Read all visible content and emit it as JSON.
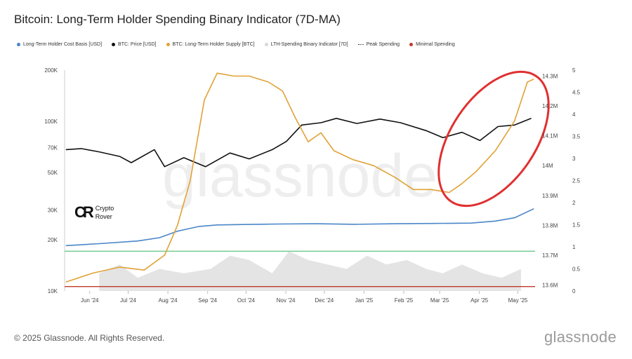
{
  "title": "Bitcoin: Long-Term Holder Spending Binary Indicator (7D-MA)",
  "legend": [
    {
      "label": "Long-Term Holder Cost Basis [USD]",
      "color": "#4a86c8",
      "style": "dot"
    },
    {
      "label": "BTC: Price [USD]",
      "color": "#111111",
      "style": "dot"
    },
    {
      "label": "BTC: Long-Term Holder Supply [BTC]",
      "color": "#e0a236",
      "style": "dot"
    },
    {
      "label": "LTH-Spending Binary Indicator [7D]",
      "color": "#d8d8d8",
      "style": "dot"
    },
    {
      "label": "Peak Spending",
      "color": "#333333",
      "style": "dash"
    },
    {
      "label": "Minimal Spending",
      "color": "#c0392b",
      "style": "dot"
    }
  ],
  "watermark": "glassnode",
  "logo": {
    "line1": "Crypto",
    "line2": "Rover"
  },
  "footer": "© 2025 Glassnode. All Rights Reserved.",
  "brand": "glassnode",
  "colors": {
    "price": "#111111",
    "cost_basis": "#4a86c8",
    "supply": "#e0a236",
    "binary": "#d9d9d9",
    "peak": "#6cc98a",
    "minimal": "#c0392b",
    "highlight": "#e03030"
  },
  "chart_data": {
    "type": "line",
    "x_ticks": [
      "Jun '24",
      "Jul '24",
      "Aug '24",
      "Sep '24",
      "Oct '24",
      "Nov '24",
      "Dec '24",
      "Jan '25",
      "Feb '25",
      "Mar '25",
      "Apr '25",
      "May '25"
    ],
    "x_domain": [
      "2024-05-19",
      "2025-05-21"
    ],
    "y_left": {
      "scale": "log",
      "ticks": [
        "10K",
        "20K",
        "30K",
        "50K",
        "70K",
        "100K",
        "200K"
      ],
      "tick_values": [
        10000,
        20000,
        30000,
        50000,
        70000,
        100000,
        200000
      ],
      "range": [
        10000,
        200000
      ]
    },
    "y_mid": {
      "ticks": [
        "13.6M",
        "13.7M",
        "13.8M",
        "13.9M",
        "14M",
        "14.1M",
        "14.2M",
        "14.3M"
      ],
      "tick_values": [
        13600000,
        13700000,
        13800000,
        13900000,
        14000000,
        14100000,
        14200000,
        14300000
      ],
      "range": [
        13580000,
        14320000
      ]
    },
    "y_right": {
      "ticks": [
        "0",
        "0.5",
        "1",
        "1.5",
        "2",
        "2.5",
        "3",
        "3.5",
        "4",
        "4.5",
        "5"
      ],
      "tick_values": [
        0,
        0.5,
        1,
        1.5,
        2,
        2.5,
        3,
        3.5,
        4,
        4.5,
        5
      ],
      "range": [
        0,
        5
      ]
    },
    "series": [
      {
        "name": "BTC: Price [USD]",
        "axis": "left",
        "x": [
          "2024-05-20",
          "2024-06-01",
          "2024-06-15",
          "2024-07-01",
          "2024-07-10",
          "2024-07-28",
          "2024-08-05",
          "2024-08-20",
          "2024-09-06",
          "2024-09-25",
          "2024-10-10",
          "2024-10-28",
          "2024-11-08",
          "2024-11-20",
          "2024-12-05",
          "2024-12-17",
          "2025-01-02",
          "2025-01-20",
          "2025-02-05",
          "2025-02-25",
          "2025-03-10",
          "2025-03-25",
          "2025-04-08",
          "2025-04-22",
          "2025-05-05",
          "2025-05-18"
        ],
        "values": [
          68000,
          69000,
          66000,
          62000,
          57000,
          68000,
          54000,
          61000,
          54000,
          65000,
          60000,
          68000,
          76000,
          95000,
          98000,
          104000,
          97000,
          103000,
          98000,
          88000,
          80000,
          86000,
          77000,
          93000,
          95000,
          104000
        ]
      },
      {
        "name": "Long-Term Holder Cost Basis [USD]",
        "axis": "left",
        "x": [
          "2024-05-20",
          "2024-06-15",
          "2024-07-15",
          "2024-08-01",
          "2024-08-15",
          "2024-09-01",
          "2024-09-15",
          "2024-10-01",
          "2024-11-01",
          "2024-12-01",
          "2025-01-01",
          "2025-02-01",
          "2025-03-01",
          "2025-04-01",
          "2025-04-20",
          "2025-05-05",
          "2025-05-20"
        ],
        "values": [
          18500,
          19000,
          19700,
          20600,
          22500,
          24000,
          24500,
          24600,
          24800,
          24900,
          24700,
          24900,
          25000,
          25100,
          25800,
          27000,
          30500
        ]
      },
      {
        "name": "BTC: Long-Term Holder Supply [BTC]",
        "axis": "mid",
        "x": [
          "2024-05-20",
          "2024-06-10",
          "2024-07-01",
          "2024-07-20",
          "2024-08-05",
          "2024-08-15",
          "2024-08-25",
          "2024-09-05",
          "2024-09-15",
          "2024-09-28",
          "2024-10-10",
          "2024-10-25",
          "2024-11-05",
          "2024-11-15",
          "2024-11-25",
          "2024-12-05",
          "2024-12-15",
          "2024-12-30",
          "2025-01-15",
          "2025-02-01",
          "2025-02-15",
          "2025-03-01",
          "2025-03-15",
          "2025-03-25",
          "2025-04-05",
          "2025-04-20",
          "2025-05-05",
          "2025-05-15",
          "2025-05-20"
        ],
        "values": [
          13610000,
          13640000,
          13660000,
          13650000,
          13700000,
          13800000,
          13950000,
          14220000,
          14310000,
          14300000,
          14300000,
          14280000,
          14250000,
          14160000,
          14080000,
          14110000,
          14050000,
          14020000,
          14000000,
          13960000,
          13920000,
          13920000,
          13910000,
          13940000,
          13980000,
          14050000,
          14150000,
          14280000,
          14290000
        ]
      },
      {
        "name": "LTH-Spending Binary Indicator [7D]",
        "axis": "right",
        "x": [
          "2024-06-15",
          "2024-07-01",
          "2024-07-15",
          "2024-08-01",
          "2024-08-20",
          "2024-09-10",
          "2024-09-25",
          "2024-10-10",
          "2024-10-28",
          "2024-11-10",
          "2024-11-25",
          "2024-12-10",
          "2024-12-25",
          "2025-01-10",
          "2025-01-25",
          "2025-02-10",
          "2025-02-25",
          "2025-03-10",
          "2025-03-25",
          "2025-04-10",
          "2025-04-25",
          "2025-05-10"
        ],
        "values": [
          0.4,
          0.6,
          0.3,
          0.5,
          0.4,
          0.5,
          0.8,
          0.7,
          0.4,
          0.9,
          0.7,
          0.6,
          0.5,
          0.8,
          0.6,
          0.7,
          0.5,
          0.4,
          0.6,
          0.4,
          0.3,
          0.5
        ]
      }
    ],
    "reference_lines": [
      {
        "name": "Peak Spending",
        "axis": "right",
        "value": 0.9
      },
      {
        "name": "Minimal Spending",
        "axis": "right",
        "value": 0.1
      }
    ],
    "annotations": [
      {
        "type": "ellipse",
        "target": "BTC: Long-Term Holder Supply [BTC]",
        "x_range": [
          "2025-03-01",
          "2025-05-21"
        ]
      }
    ],
    "grid": false,
    "legend_position": "top-left"
  }
}
